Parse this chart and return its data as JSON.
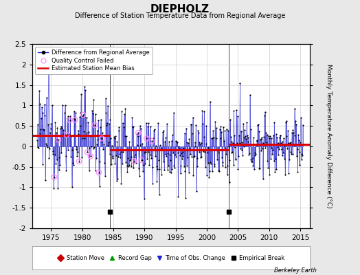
{
  "title": "DIEPHOLZ",
  "subtitle": "Difference of Station Temperature Data from Regional Average",
  "ylabel": "Monthly Temperature Anomaly Difference (°C)",
  "xlim": [
    1972.0,
    2016.5
  ],
  "ylim": [
    -2.0,
    2.5
  ],
  "yticks": [
    -2,
    -1.5,
    -1,
    -0.5,
    0,
    0.5,
    1,
    1.5,
    2,
    2.5
  ],
  "xticks": [
    1975,
    1980,
    1985,
    1990,
    1995,
    2000,
    2005,
    2010,
    2015
  ],
  "background_color": "#e8e8e8",
  "plot_bg_color": "#ffffff",
  "bias_segments": [
    {
      "x_start": 1972.0,
      "x_end": 1984.5,
      "bias": 0.27
    },
    {
      "x_start": 1984.5,
      "x_end": 2003.5,
      "bias": -0.08
    },
    {
      "x_start": 2003.5,
      "x_end": 2016.5,
      "bias": 0.05
    }
  ],
  "empirical_breaks": [
    1984.5,
    2003.5
  ],
  "line_color": "#2222cc",
  "dot_color": "#000000",
  "bias_color": "#dd0000",
  "qc_color": "#ff88ff",
  "seed": 12345,
  "figsize": [
    5.24,
    4.0
  ],
  "dpi": 100
}
